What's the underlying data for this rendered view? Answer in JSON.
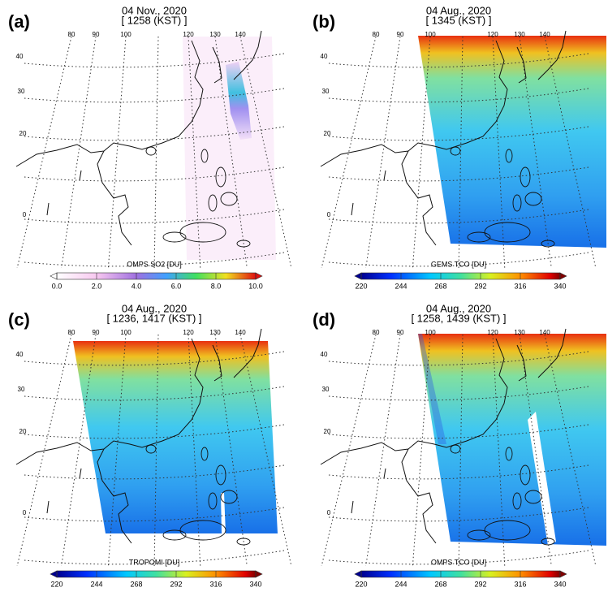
{
  "panels": [
    {
      "label": "(a)",
      "title": [
        "04 Nov., 2020",
        "[ 1258 (KST) ]"
      ],
      "lon_labels": [
        "80",
        "90",
        "100",
        "120",
        "130",
        "140"
      ],
      "lat_labels": [
        "40",
        "30",
        "20",
        "0"
      ],
      "colorbar": {
        "label": "OMPS SO2 [DU]",
        "ticks": [
          "0.0",
          "2.0",
          "4.0",
          "6.0",
          "8.0",
          "10.0"
        ]
      }
    },
    {
      "label": "(b)",
      "title": [
        "04 Aug., 2020",
        "[ 1345 (KST) ]"
      ],
      "lon_labels": [
        "80",
        "90",
        "100",
        "120",
        "130",
        "140"
      ],
      "lat_labels": [
        "40",
        "30",
        "20",
        "0"
      ],
      "colorbar": {
        "label": "GEMS TCO [DU]",
        "ticks": [
          "220",
          "244",
          "268",
          "292",
          "316",
          "340"
        ]
      }
    },
    {
      "label": "(c)",
      "title": [
        "04 Aug., 2020",
        "[ 1236, 1417 (KST) ]"
      ],
      "lon_labels": [
        "80",
        "90",
        "100",
        "120",
        "130",
        "140"
      ],
      "lat_labels": [
        "40",
        "30",
        "20",
        "0"
      ],
      "colorbar": {
        "label": "TROPOMI [DU]",
        "ticks": [
          "220",
          "244",
          "268",
          "292",
          "316",
          "340"
        ]
      }
    },
    {
      "label": "(d)",
      "title": [
        "04 Aug., 2020",
        "[ 1258, 1439 (KST) ]"
      ],
      "lon_labels": [
        "80",
        "90",
        "100",
        "120",
        "130",
        "140"
      ],
      "lat_labels": [
        "40",
        "30",
        "20",
        "0"
      ],
      "colorbar": {
        "label": "OMPS TCO [DU]",
        "ticks": [
          "220",
          "244",
          "268",
          "292",
          "316",
          "340"
        ]
      }
    }
  ]
}
